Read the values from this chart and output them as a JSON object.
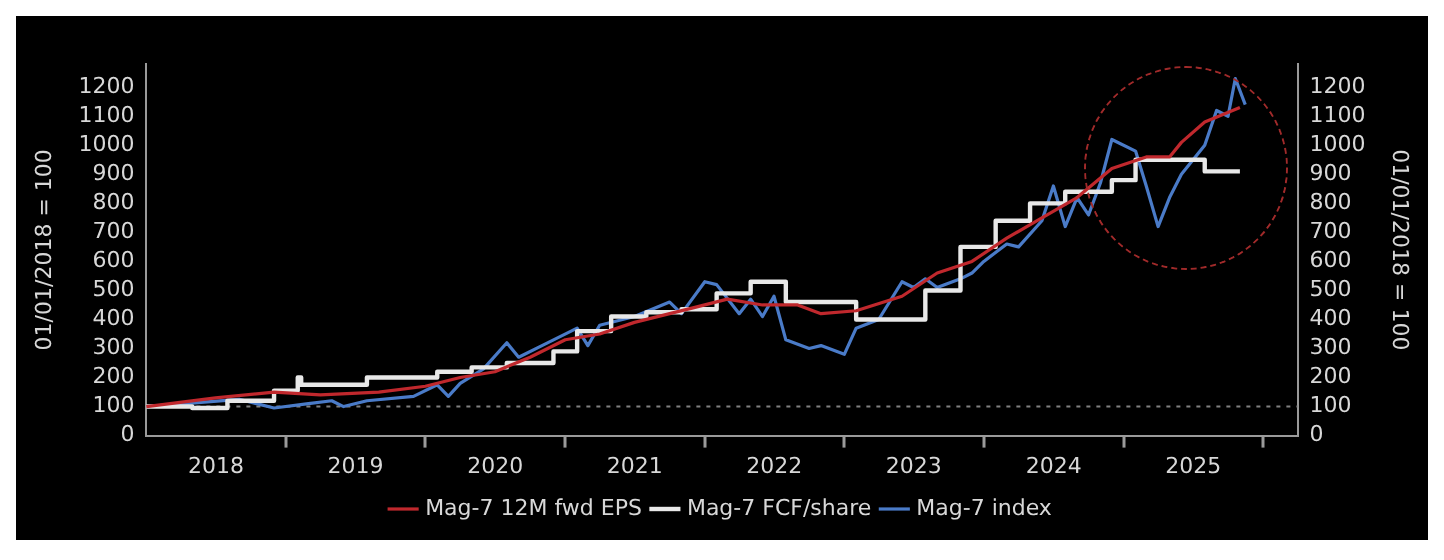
{
  "chart_data": {
    "type": "line",
    "ylabel": "01/01/2018 = 100",
    "y2label": "01/01/2018 = 100",
    "xlim": [
      "2018-01-01",
      "2026-04-01"
    ],
    "xticks": [
      {
        "value": "2018-07-02",
        "label": "2018"
      },
      {
        "value": "2019-01-01",
        "label": null
      },
      {
        "value": "2019-07-02",
        "label": "2019"
      },
      {
        "value": "2020-01-01",
        "label": null
      },
      {
        "value": "2020-07-02",
        "label": "2020"
      },
      {
        "value": "2021-01-01",
        "label": null
      },
      {
        "value": "2021-07-02",
        "label": "2021"
      },
      {
        "value": "2022-01-01",
        "label": null
      },
      {
        "value": "2022-07-02",
        "label": "2022"
      },
      {
        "value": "2023-01-01",
        "label": null
      },
      {
        "value": "2023-07-02",
        "label": "2023"
      },
      {
        "value": "2024-01-01",
        "label": null
      },
      {
        "value": "2024-07-02",
        "label": "2024"
      },
      {
        "value": "2025-01-01",
        "label": null
      },
      {
        "value": "2025-07-02",
        "label": "2025"
      },
      {
        "value": "2026-01-01",
        "label": null
      }
    ],
    "ylim": [
      0,
      1280
    ],
    "yticks": [
      0,
      100,
      200,
      300,
      400,
      500,
      600,
      700,
      800,
      900,
      1000,
      1100,
      1200
    ],
    "y2lim": [
      0,
      1280
    ],
    "y2ticks": [
      0,
      100,
      200,
      300,
      400,
      500,
      600,
      700,
      800,
      900,
      1000,
      1100,
      1200
    ],
    "grid": false,
    "legend": "bottom",
    "marker": "none",
    "ref_lines": [
      {
        "axis": "y",
        "value": 100,
        "color": "#808080",
        "line_style": "dotted"
      }
    ],
    "series": [
      {
        "name": "Mag-7 12M fwd EPS",
        "type": "line",
        "color": "#c0282d",
        "x": [
          "2018-01",
          "2018-07",
          "2018-12",
          "2019-04",
          "2019-09",
          "2020-01",
          "2020-04",
          "2020-07",
          "2020-10",
          "2021-01",
          "2021-04",
          "2021-07",
          "2021-10",
          "2021-12",
          "2022-03",
          "2022-06",
          "2022-09",
          "2022-11",
          "2023-02",
          "2023-06",
          "2023-09",
          "2023-12",
          "2024-03",
          "2024-06",
          "2024-09",
          "2024-12",
          "2025-03",
          "2025-05",
          "2025-06",
          "2025-08",
          "2025-11"
        ],
        "values": [
          100,
          130,
          150,
          140,
          150,
          170,
          200,
          220,
          270,
          330,
          350,
          390,
          420,
          440,
          470,
          450,
          450,
          420,
          430,
          480,
          560,
          600,
          680,
          750,
          820,
          920,
          960,
          960,
          1010,
          1080,
          1130
        ]
      },
      {
        "name": "Mag-7 FCF/share",
        "type": "step",
        "color": "#e8e8e8",
        "x": [
          "2018-01",
          "2018-05",
          "2018-08",
          "2018-12",
          "2019-02-01",
          "2019-02-10",
          "2019-08",
          "2020-02",
          "2020-05",
          "2020-08",
          "2020-12",
          "2021-02",
          "2021-05",
          "2021-08",
          "2021-11",
          "2022-02",
          "2022-05",
          "2022-08",
          "2023-02",
          "2023-08",
          "2023-11",
          "2024-02",
          "2024-05",
          "2024-08",
          "2024-12",
          "2025-02",
          "2025-08",
          "2025-11"
        ],
        "values": [
          100,
          95,
          120,
          155,
          200,
          175,
          200,
          220,
          235,
          250,
          290,
          360,
          410,
          425,
          435,
          490,
          530,
          460,
          400,
          500,
          650,
          740,
          800,
          840,
          880,
          950,
          910,
          910
        ]
      },
      {
        "name": "Mag-7 index",
        "type": "line",
        "color": "#4a7bc8",
        "x": [
          "2018-01",
          "2018-06",
          "2018-09",
          "2018-12",
          "2019-03",
          "2019-05",
          "2019-06",
          "2019-08",
          "2019-12",
          "2020-02",
          "2020-03",
          "2020-04",
          "2020-06",
          "2020-08",
          "2020-09",
          "2020-11",
          "2021-02",
          "2021-03",
          "2021-04",
          "2021-07",
          "2021-10",
          "2021-11",
          "2022-01",
          "2022-02",
          "2022-04",
          "2022-05",
          "2022-06",
          "2022-07",
          "2022-08",
          "2022-10",
          "2022-11",
          "2023-01",
          "2023-02",
          "2023-04",
          "2023-06",
          "2023-07",
          "2023-08",
          "2023-09",
          "2023-11",
          "2023-12",
          "2024-01",
          "2024-03",
          "2024-04",
          "2024-06",
          "2024-07",
          "2024-08",
          "2024-09",
          "2024-10",
          "2024-11",
          "2024-12",
          "2025-02",
          "2025-03",
          "2025-04",
          "2025-05",
          "2025-06",
          "2025-08",
          "2025-09",
          "2025-10-01",
          "2025-10-20",
          "2025-11-15"
        ],
        "values": [
          100,
          115,
          125,
          95,
          110,
          120,
          100,
          120,
          135,
          175,
          135,
          180,
          230,
          320,
          270,
          310,
          370,
          310,
          380,
          410,
          460,
          420,
          530,
          520,
          420,
          470,
          410,
          480,
          330,
          300,
          310,
          280,
          370,
          400,
          530,
          510,
          540,
          510,
          540,
          560,
          600,
          660,
          650,
          740,
          860,
          720,
          820,
          760,
          870,
          1020,
          980,
          860,
          720,
          820,
          900,
          1000,
          1120,
          1100,
          1230,
          1140
        ]
      }
    ]
  }
}
